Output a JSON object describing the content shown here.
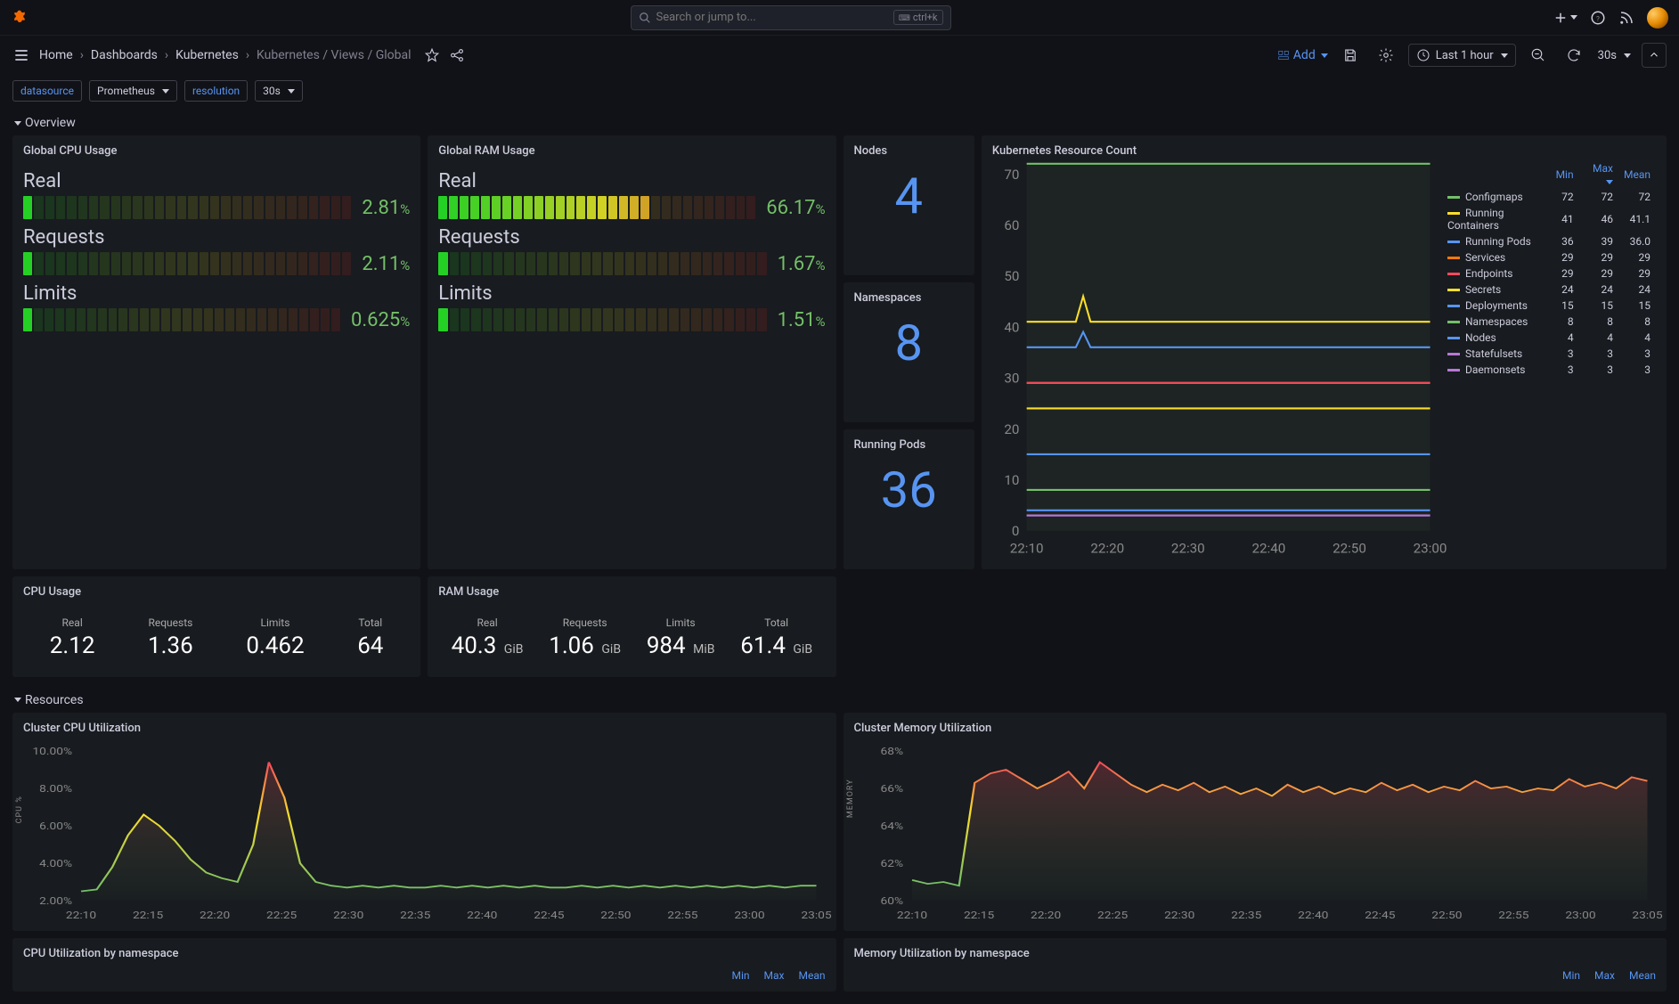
{
  "colors": {
    "bg": "#111217",
    "panel": "#181b1f",
    "text": "#ccccdc",
    "muted": "#808090",
    "blue": "#5794f2",
    "orange": "#f46800",
    "green": "#73bf69",
    "red": "#f2495c",
    "yellow": "#fade2a"
  },
  "topbar": {
    "search_placeholder": "Search or jump to...",
    "shortcut": "ctrl+k"
  },
  "breadcrumbs": {
    "home": "Home",
    "dashboards": "Dashboards",
    "kubernetes": "Kubernetes",
    "current": "Kubernetes / Views / Global"
  },
  "toolbar": {
    "add": "Add",
    "time_label": "Last 1 hour",
    "refresh_interval": "30s"
  },
  "vars": {
    "datasource_label": "datasource",
    "datasource_value": "Prometheus",
    "resolution_label": "resolution",
    "resolution_value": "30s"
  },
  "sections": {
    "overview": "Overview",
    "resources": "Resources"
  },
  "panels": {
    "cpu_gauge_title": "Global CPU Usage",
    "ram_gauge_title": "Global RAM Usage",
    "gauge_rows": [
      "Real",
      "Requests",
      "Limits"
    ],
    "cpu_pcts": [
      "2.81",
      "2.11",
      "0.625"
    ],
    "cpu_fills": [
      2.81,
      2.11,
      0.625
    ],
    "ram_pcts": [
      "66.17",
      "1.67",
      "1.51"
    ],
    "ram_fills": [
      66.17,
      1.67,
      1.51
    ],
    "pct_colors": [
      "#73bf69",
      "#73bf69",
      "#73bf69"
    ],
    "cpu_usage_title": "CPU Usage",
    "cpu_stats": [
      {
        "lbl": "Real",
        "val": "2.12",
        "unit": ""
      },
      {
        "lbl": "Requests",
        "val": "1.36",
        "unit": ""
      },
      {
        "lbl": "Limits",
        "val": "0.462",
        "unit": ""
      },
      {
        "lbl": "Total",
        "val": "64",
        "unit": ""
      }
    ],
    "ram_usage_title": "RAM Usage",
    "ram_stats": [
      {
        "lbl": "Real",
        "val": "40.3",
        "unit": "GiB"
      },
      {
        "lbl": "Requests",
        "val": "1.06",
        "unit": "GiB"
      },
      {
        "lbl": "Limits",
        "val": "984",
        "unit": "MiB"
      },
      {
        "lbl": "Total",
        "val": "61.4",
        "unit": "GiB"
      }
    ],
    "nodes_title": "Nodes",
    "nodes_value": "4",
    "namespaces_title": "Namespaces",
    "namespaces_value": "8",
    "pods_title": "Running Pods",
    "pods_value": "36",
    "rescount_title": "Kubernetes Resource Count",
    "rescount_headers": [
      "Min",
      "Max",
      "Mean"
    ],
    "rescount": {
      "ylim": [
        0,
        70
      ],
      "yticks": [
        0,
        10,
        20,
        30,
        40,
        50,
        60,
        70
      ],
      "xticks": [
        "22:10",
        "22:20",
        "22:30",
        "22:40",
        "22:50",
        "23:00"
      ],
      "series": [
        {
          "name": "Configmaps",
          "color": "#73bf69",
          "min": "72",
          "max": "72",
          "mean": "72",
          "y": 72,
          "peak": null
        },
        {
          "name": "Running Containers",
          "color": "#fade2a",
          "min": "41",
          "max": "46",
          "mean": "41.1",
          "y": 41,
          "peak": 46
        },
        {
          "name": "Running Pods",
          "color": "#5794f2",
          "min": "36",
          "max": "39",
          "mean": "36.0",
          "y": 36,
          "peak": 39
        },
        {
          "name": "Services",
          "color": "#ff780a",
          "min": "29",
          "max": "29",
          "mean": "29",
          "y": 29,
          "peak": null
        },
        {
          "name": "Endpoints",
          "color": "#f2495c",
          "min": "29",
          "max": "29",
          "mean": "29",
          "y": 29,
          "peak": null
        },
        {
          "name": "Secrets",
          "color": "#fade2a",
          "min": "24",
          "max": "24",
          "mean": "24",
          "y": 24,
          "peak": null
        },
        {
          "name": "Deployments",
          "color": "#5794f2",
          "min": "15",
          "max": "15",
          "mean": "15",
          "y": 15,
          "peak": null
        },
        {
          "name": "Namespaces",
          "color": "#73bf69",
          "min": "8",
          "max": "8",
          "mean": "8",
          "y": 8,
          "peak": null
        },
        {
          "name": "Nodes",
          "color": "#5794f2",
          "min": "4",
          "max": "4",
          "mean": "4",
          "y": 4,
          "peak": null
        },
        {
          "name": "Statefulsets",
          "color": "#b877d9",
          "min": "3",
          "max": "3",
          "mean": "3",
          "y": 3,
          "peak": null
        },
        {
          "name": "Daemonsets",
          "color": "#b877d9",
          "min": "3",
          "max": "3",
          "mean": "3",
          "y": 3,
          "peak": null
        }
      ]
    },
    "cluster_cpu_title": "Cluster CPU Utilization",
    "cluster_cpu": {
      "ylabel": "CPU %",
      "ylim": [
        2,
        10
      ],
      "yticks": [
        "2.00%",
        "4.00%",
        "6.00%",
        "8.00%",
        "10.00%"
      ],
      "xticks": [
        "22:10",
        "22:15",
        "22:20",
        "22:25",
        "22:30",
        "22:35",
        "22:40",
        "22:45",
        "22:50",
        "22:55",
        "23:00",
        "23:05"
      ],
      "points": [
        2.5,
        2.6,
        3.8,
        5.5,
        6.6,
        6.0,
        5.2,
        4.2,
        3.5,
        3.2,
        3.0,
        5.0,
        9.4,
        7.5,
        4.0,
        3.0,
        2.8,
        2.7,
        2.8,
        2.7,
        2.8,
        2.7,
        2.7,
        2.8,
        2.7,
        2.8,
        2.7,
        2.8,
        2.7,
        2.8,
        2.7,
        2.7,
        2.8,
        2.7,
        2.8,
        2.7,
        2.8,
        2.7,
        2.8,
        2.7,
        2.8,
        2.7,
        2.8,
        2.7,
        2.8,
        2.7,
        2.8,
        2.8
      ]
    },
    "cluster_mem_title": "Cluster Memory Utilization",
    "cluster_mem": {
      "ylabel": "MEMORY",
      "ylim": [
        60,
        68
      ],
      "yticks": [
        "60%",
        "62%",
        "64%",
        "66%",
        "68%"
      ],
      "xticks": [
        "22:10",
        "22:15",
        "22:20",
        "22:25",
        "22:30",
        "22:35",
        "22:40",
        "22:45",
        "22:50",
        "22:55",
        "23:00",
        "23:05"
      ],
      "points": [
        61.1,
        60.9,
        61.0,
        60.8,
        66.3,
        66.8,
        67.0,
        66.5,
        66.0,
        66.4,
        66.9,
        66.0,
        67.4,
        66.8,
        66.2,
        65.8,
        66.2,
        65.9,
        66.3,
        65.8,
        66.1,
        65.7,
        66.0,
        65.6,
        66.2,
        65.8,
        66.1,
        65.7,
        66.0,
        65.8,
        66.3,
        65.9,
        66.2,
        65.8,
        66.1,
        65.9,
        66.4,
        66.0,
        66.1,
        65.8,
        66.0,
        65.9,
        66.5,
        66.1,
        66.3,
        66.0,
        66.6,
        66.4
      ]
    },
    "cpu_ns_title": "CPU Utilization by namespace",
    "mem_ns_title": "Memory Utilization by namespace",
    "ns_headers": [
      "Min",
      "Max",
      "Mean"
    ]
  }
}
